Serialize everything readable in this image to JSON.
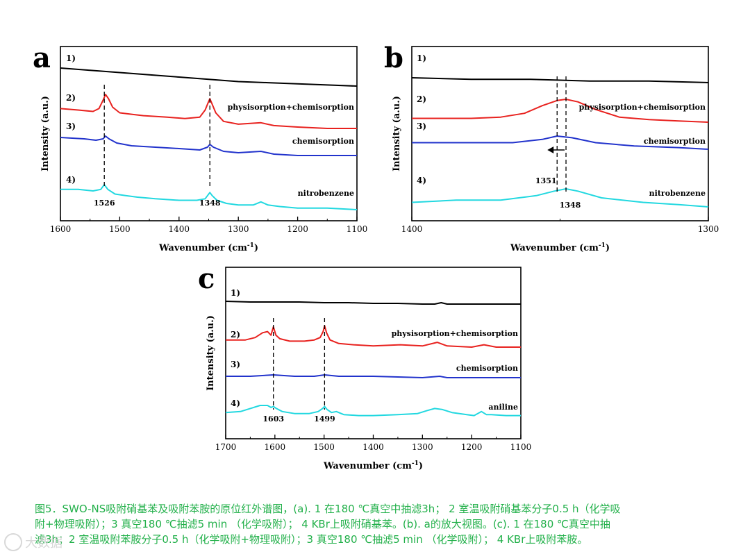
{
  "chart_data": [
    {
      "panel": "a",
      "type": "line",
      "xlabel": "Wavenumber (cm",
      "xlabel_sup": "-1",
      "xlabel_end": ")",
      "ylabel": "Intensity (a.u.)",
      "xlim": [
        1600,
        1100
      ],
      "xticks": [
        1600,
        1500,
        1400,
        1300,
        1200,
        1100
      ],
      "series": [
        {
          "name": "1)",
          "color": "#000000",
          "label": "",
          "x": [
            1600,
            1550,
            1500,
            1450,
            1400,
            1350,
            1300,
            1250,
            1200,
            1150,
            1100
          ],
          "y": [
            92,
            90,
            88,
            86,
            84,
            82,
            80,
            79,
            78,
            77,
            76
          ]
        },
        {
          "name": "2)",
          "color": "#e8221f",
          "label": "physisorption+chemisorption",
          "x": [
            1600,
            1570,
            1545,
            1535,
            1528,
            1524,
            1519,
            1512,
            1500,
            1480,
            1460,
            1420,
            1390,
            1365,
            1356,
            1351,
            1348,
            1344,
            1338,
            1325,
            1300,
            1262,
            1240,
            1200,
            1150,
            1100
          ],
          "y": [
            65,
            64,
            63,
            65,
            71,
            75,
            72,
            66,
            62,
            61,
            60,
            59,
            58,
            59,
            64,
            69,
            72,
            68,
            62,
            56,
            54,
            55,
            53,
            52,
            51,
            51
          ]
        },
        {
          "name": "3)",
          "color": "#2233cc",
          "label": "chemisorption",
          "x": [
            1600,
            1560,
            1540,
            1528,
            1524,
            1518,
            1505,
            1480,
            1440,
            1400,
            1365,
            1352,
            1348,
            1342,
            1325,
            1300,
            1262,
            1240,
            1200,
            1150,
            1100
          ],
          "y": [
            44,
            43,
            42,
            43,
            45,
            43,
            40,
            38,
            37,
            36,
            35,
            37,
            39,
            37,
            34,
            33,
            34,
            32,
            31,
            31,
            31
          ]
        },
        {
          "name": "4)",
          "color": "#22d8e0",
          "label": "nitrobenzene",
          "x": [
            1600,
            1570,
            1545,
            1532,
            1526,
            1520,
            1508,
            1490,
            1470,
            1440,
            1400,
            1370,
            1356,
            1352,
            1348,
            1344,
            1336,
            1320,
            1300,
            1275,
            1262,
            1250,
            1230,
            1200,
            1150,
            1100
          ],
          "y": [
            11,
            11,
            10,
            11,
            14,
            11,
            8,
            7,
            6,
            5,
            4,
            4,
            5,
            7,
            9,
            7,
            4,
            2,
            1,
            1,
            3,
            1,
            0,
            -1,
            -1,
            -2
          ]
        }
      ],
      "curve_labels": [
        "1)",
        "2)",
        "3)",
        "4)"
      ],
      "peaks": [
        {
          "x": 1526,
          "label": "1526"
        },
        {
          "x": 1348,
          "label": "1348"
        }
      ],
      "tag": "a"
    },
    {
      "panel": "b",
      "type": "line",
      "xlabel": "Wavenumber (cm",
      "xlabel_sup": "-1",
      "xlabel_end": ")",
      "ylabel": "Intensity (a.u.)",
      "xlim": [
        1400,
        1300
      ],
      "xticks": [
        1400,
        1300
      ],
      "series": [
        {
          "name": "1)",
          "color": "#000000",
          "label": "",
          "x": [
            1400,
            1380,
            1360,
            1340,
            1320,
            1300
          ],
          "y": [
            84,
            83,
            83,
            82,
            82,
            81
          ]
        },
        {
          "name": "2)",
          "color": "#e8221f",
          "label": "physisorption+chemisorption",
          "x": [
            1400,
            1380,
            1370,
            1362,
            1356,
            1351,
            1348,
            1344,
            1338,
            1330,
            1320,
            1310,
            1300
          ],
          "y": [
            56,
            56,
            57,
            60,
            66,
            70,
            71,
            69,
            63,
            57,
            55,
            54,
            53
          ]
        },
        {
          "name": "3)",
          "color": "#2233cc",
          "label": "chemisorption",
          "x": [
            1400,
            1380,
            1366,
            1356,
            1351,
            1346,
            1338,
            1325,
            1310,
            1300
          ],
          "y": [
            37,
            37,
            37,
            39,
            41,
            40,
            37,
            35,
            34,
            33
          ]
        },
        {
          "name": "4)",
          "color": "#22d8e0",
          "label": "nitrobenzene",
          "x": [
            1400,
            1385,
            1370,
            1358,
            1352,
            1348,
            1344,
            1336,
            1322,
            1310,
            1300
          ],
          "y": [
            4,
            5,
            5,
            7,
            9,
            10,
            9,
            6,
            4,
            3,
            2
          ]
        }
      ],
      "curve_labels": [
        "1)",
        "2)",
        "3)",
        "4)"
      ],
      "peaks": [
        {
          "x": 1351,
          "label": "1351"
        },
        {
          "x": 1348,
          "label": "1348"
        }
      ],
      "tag": "b"
    },
    {
      "panel": "c",
      "type": "line",
      "xlabel": "Wavenumber (cm",
      "xlabel_sup": "-1",
      "xlabel_end": ")",
      "ylabel": "Intensity (a.u.)",
      "xlim": [
        1700,
        1100
      ],
      "xticks": [
        1700,
        1600,
        1500,
        1400,
        1300,
        1200,
        1100
      ],
      "series": [
        {
          "name": "1)",
          "color": "#000000",
          "label": "",
          "x": [
            1700,
            1650,
            1600,
            1550,
            1500,
            1450,
            1400,
            1350,
            1300,
            1275,
            1262,
            1250,
            1200,
            1150,
            1100
          ],
          "y": [
            88,
            87,
            87,
            87,
            86,
            86,
            85,
            85,
            84,
            84,
            86,
            84,
            84,
            84,
            84
          ]
        },
        {
          "name": "2)",
          "color": "#e8221f",
          "label": "physisorption+chemisorption",
          "x": [
            1700,
            1660,
            1640,
            1625,
            1615,
            1608,
            1603,
            1598,
            1590,
            1570,
            1540,
            1520,
            1508,
            1502,
            1499,
            1495,
            1488,
            1470,
            1440,
            1400,
            1345,
            1300,
            1270,
            1250,
            1200,
            1175,
            1150,
            1100
          ],
          "y": [
            56,
            56,
            58,
            62,
            63,
            60,
            67,
            60,
            57,
            55,
            55,
            56,
            58,
            63,
            68,
            62,
            56,
            53,
            52,
            51,
            52,
            51,
            54,
            51,
            50,
            52,
            50,
            50
          ]
        },
        {
          "name": "3)",
          "color": "#2233cc",
          "label": "chemisorption",
          "x": [
            1700,
            1650,
            1603,
            1560,
            1520,
            1499,
            1470,
            1400,
            1300,
            1265,
            1250,
            1200,
            1150,
            1100
          ],
          "y": [
            36,
            36,
            37,
            36,
            36,
            37,
            36,
            36,
            35,
            36,
            35,
            35,
            35,
            35
          ]
        },
        {
          "name": "4)",
          "color": "#22d8e0",
          "label": "aniline",
          "x": [
            1700,
            1670,
            1650,
            1630,
            1615,
            1608,
            1603,
            1597,
            1585,
            1560,
            1530,
            1512,
            1503,
            1499,
            1494,
            1485,
            1475,
            1460,
            1430,
            1400,
            1350,
            1310,
            1290,
            1275,
            1260,
            1240,
            1210,
            1195,
            1180,
            1170,
            1160,
            1130,
            1100
          ],
          "y": [
            5,
            6,
            9,
            12,
            12,
            10,
            11,
            9,
            6,
            4,
            4,
            6,
            9,
            11,
            8,
            5,
            6,
            3,
            2,
            2,
            3,
            4,
            7,
            9,
            8,
            5,
            3,
            2,
            6,
            3,
            3,
            2,
            2
          ]
        }
      ],
      "curve_labels": [
        "1)",
        "2)",
        "3)",
        "4)"
      ],
      "peaks": [
        {
          "x": 1603,
          "label": "1603"
        },
        {
          "x": 1499,
          "label": "1499"
        }
      ],
      "tag": "c"
    }
  ],
  "caption": {
    "line1": "图5．SWO-NS吸附硝基苯及吸附苯胺的原位红外谱图，(a). 1 在180 ℃真空中抽滤3h； 2 室温吸附硝基苯分子0.5 h（化学吸",
    "line2": "附+物理吸附）；3 真空180 ℃抽滤5 min （化学吸附）； 4 KBr上吸附硝基苯。(b). a的放大视图。(c). 1 在180 ℃真空中抽",
    "line3": "滤3h；2 室温吸附苯胺分子0.5 h（化学吸附+物理吸附）；3 真空180 ℃抽滤5 min （化学吸附）； 4 KBr上吸附苯胺。"
  },
  "watermark": "大数据"
}
